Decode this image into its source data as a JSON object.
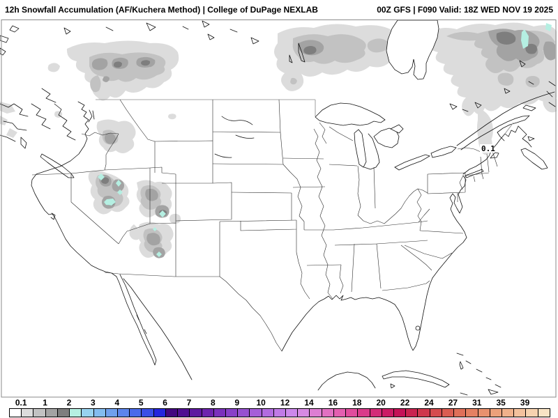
{
  "title": {
    "product": "12h Snowfall Accumulation (AF/Kuchera Method) | College of DuPage NEXLAB",
    "model_info": "00Z GFS | F090 Valid: 18Z WED NOV 19 2025"
  },
  "map": {
    "contour_label": "0.1",
    "land_color": "#ffffff",
    "coast_color": "#111111",
    "state_border_color": "#2a2a2a",
    "national_border_color": "#a6a6a6",
    "frame_color": "#8a8a8a",
    "shading_levels": {
      "trace": "#dcdcdc",
      "light": "#c2c2c2",
      "moderate": "#a3a3a3",
      "heavy": "#7e7e7e",
      "extreme": "#b5efe2"
    },
    "snowfall_regions": [
      {
        "name": "british-columbia-rockies",
        "shading": "heavy"
      },
      {
        "name": "northern-ontario-manitoba",
        "shading": "heavy"
      },
      {
        "name": "quebec-labrador",
        "shading": "extreme"
      },
      {
        "name": "idaho-montana-rockies",
        "shading": "moderate"
      },
      {
        "name": "nevada-great-basin-ranges",
        "shading": "extreme"
      },
      {
        "name": "utah-arizona-high-terrain",
        "shading": "extreme"
      },
      {
        "name": "northern-new-england",
        "shading": "trace"
      }
    ]
  },
  "colorbar": {
    "tick_labels": [
      "0.1",
      "1",
      "2",
      "3",
      "4",
      "5",
      "6",
      "7",
      "8",
      "9",
      "10",
      "12",
      "14",
      "16",
      "18",
      "20",
      "22",
      "24",
      "27",
      "31",
      "35",
      "39"
    ],
    "colors": [
      "#ffffff",
      "#dcdcdc",
      "#c2c2c2",
      "#a3a3a3",
      "#7e7e7e",
      "#b5efe2",
      "#97d2ef",
      "#83bcef",
      "#70a0ed",
      "#5d85ec",
      "#4a6bea",
      "#3a4fe6",
      "#2525dd",
      "#43067f",
      "#510e91",
      "#5f18a0",
      "#6d23ae",
      "#7b30bc",
      "#8940c8",
      "#9750d0",
      "#a55ed8",
      "#b26ce0",
      "#c07ae6",
      "#cc88ea",
      "#d689e2",
      "#dd7ed3",
      "#e170c2",
      "#e35fb0",
      "#e04c9d",
      "#da3a8a",
      "#d32a77",
      "#cb1b65",
      "#c41257",
      "#c9234f",
      "#cf374c",
      "#d54b4e",
      "#da5d52",
      "#df6f59",
      "#e48062",
      "#e8916e",
      "#eca17b",
      "#f0b18b",
      "#f3c19d",
      "#f6d2af",
      "#f9e3c4"
    ]
  }
}
